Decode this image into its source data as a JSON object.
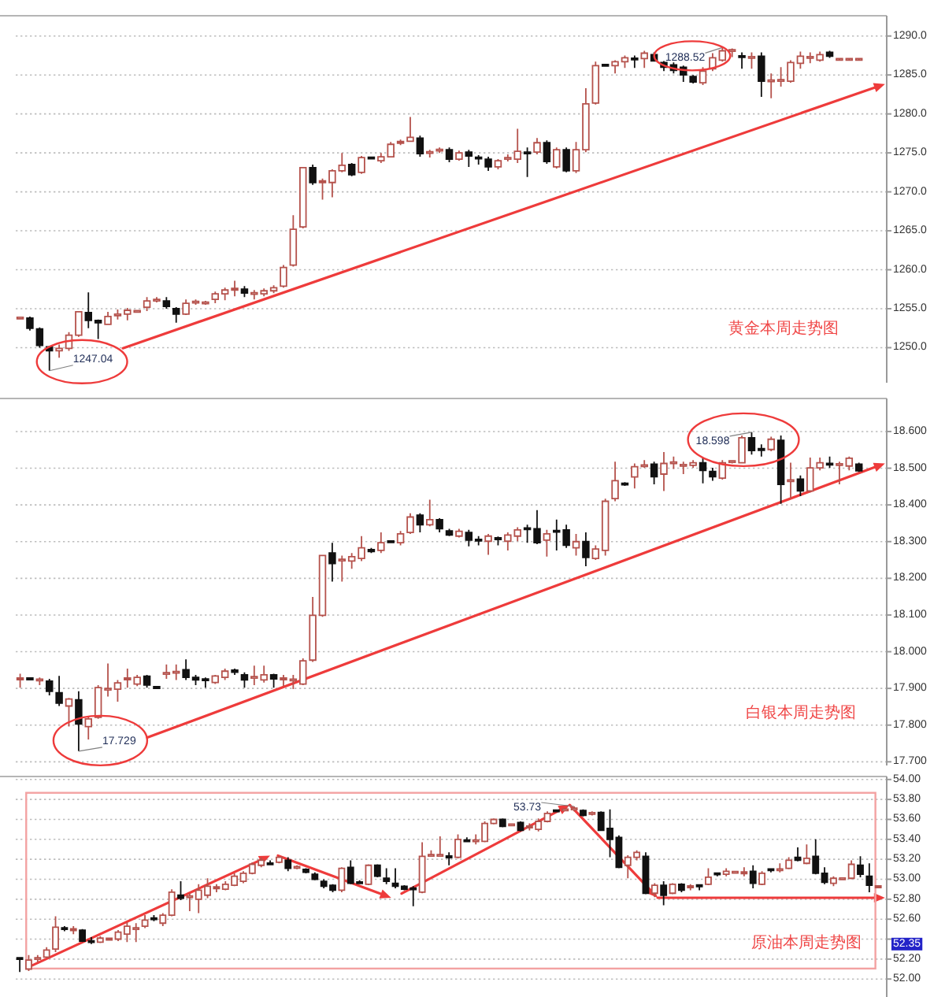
{
  "chart_data": [
    {
      "type": "candlestick",
      "title": "黄金本周走势图",
      "categories": [
        null,
        null,
        null,
        null,
        null,
        null,
        null,
        null,
        null,
        null,
        null,
        null,
        null,
        null,
        null,
        null,
        null,
        null,
        null,
        null,
        null,
        null,
        null,
        null,
        null,
        null,
        null,
        null,
        null,
        null,
        null,
        null,
        null,
        null,
        null,
        null,
        null,
        null,
        null,
        null,
        null,
        null,
        null,
        null,
        null,
        null,
        null,
        null,
        null,
        null,
        null,
        null,
        null,
        null,
        null,
        null,
        null,
        null,
        null,
        null,
        null,
        null,
        null,
        null,
        null,
        null,
        null,
        null,
        null,
        null,
        null,
        null,
        null,
        null,
        null,
        null,
        null,
        null,
        null,
        null,
        null,
        null,
        null,
        null,
        null,
        null,
        null
      ],
      "ohlc": [
        [
          1253.8,
          1254.0,
          1253.6,
          1253.8
        ],
        [
          1253.8,
          1254.0,
          1252.2,
          1252.5
        ],
        [
          1252.4,
          1252.6,
          1250.0,
          1250.3
        ],
        [
          1250.1,
          1250.2,
          1247.04,
          1249.6
        ],
        [
          1249.6,
          1250.4,
          1248.7,
          1249.9
        ],
        [
          1249.9,
          1252.0,
          1249.6,
          1251.6
        ],
        [
          1251.6,
          1254.7,
          1251.4,
          1254.6
        ],
        [
          1254.5,
          1257.1,
          1252.5,
          1253.5
        ],
        [
          1253.5,
          1253.6,
          1251.1,
          1253.2
        ],
        [
          1253.0,
          1254.6,
          1252.9,
          1254.0
        ],
        [
          1254.1,
          1254.9,
          1253.6,
          1254.3
        ],
        [
          1254.3,
          1255.1,
          1253.5,
          1254.8
        ],
        [
          1254.6,
          1254.8,
          1254.5,
          1254.7
        ],
        [
          1255.2,
          1256.5,
          1254.7,
          1256.0
        ],
        [
          1256.0,
          1256.5,
          1255.8,
          1256.2
        ],
        [
          1256.0,
          1256.5,
          1255.0,
          1255.3
        ],
        [
          1255.0,
          1255.2,
          1253.2,
          1254.3
        ],
        [
          1254.3,
          1256.2,
          1254.2,
          1255.7
        ],
        [
          1255.8,
          1256.2,
          1255.5,
          1255.9
        ],
        [
          1255.7,
          1256.0,
          1255.5,
          1255.8
        ],
        [
          1256.2,
          1257.2,
          1255.7,
          1256.9
        ],
        [
          1256.9,
          1257.7,
          1256.1,
          1257.4
        ],
        [
          1257.4,
          1258.6,
          1256.6,
          1257.6
        ],
        [
          1257.5,
          1257.9,
          1256.5,
          1257.0
        ],
        [
          1256.9,
          1257.4,
          1256.2,
          1257.0
        ],
        [
          1256.9,
          1257.6,
          1256.6,
          1257.3
        ],
        [
          1257.3,
          1258.0,
          1257.0,
          1257.7
        ],
        [
          1257.9,
          1260.6,
          1257.7,
          1260.3
        ],
        [
          1260.6,
          1267.0,
          1260.4,
          1265.2
        ],
        [
          1265.5,
          1273.2,
          1265.3,
          1273.1
        ],
        [
          1273.1,
          1273.5,
          1270.9,
          1271.2
        ],
        [
          1271.2,
          1271.7,
          1269.0,
          1271.4
        ],
        [
          1271.2,
          1272.9,
          1269.3,
          1272.7
        ],
        [
          1272.7,
          1275.0,
          1272.5,
          1273.4
        ],
        [
          1273.5,
          1273.7,
          1272.0,
          1272.2
        ],
        [
          1272.5,
          1274.6,
          1272.3,
          1274.4
        ],
        [
          1274.4,
          1274.5,
          1274.2,
          1274.3
        ],
        [
          1274.0,
          1275.0,
          1273.7,
          1274.5
        ],
        [
          1274.5,
          1276.4,
          1274.4,
          1276.1
        ],
        [
          1276.3,
          1276.7,
          1276.0,
          1276.4
        ],
        [
          1276.5,
          1279.6,
          1276.4,
          1277.0
        ],
        [
          1276.9,
          1277.2,
          1274.5,
          1274.9
        ],
        [
          1275.0,
          1275.4,
          1274.4,
          1275.1
        ],
        [
          1275.3,
          1275.7,
          1275.0,
          1275.4
        ],
        [
          1275.4,
          1275.7,
          1273.8,
          1274.2
        ],
        [
          1274.2,
          1275.3,
          1274.0,
          1275.0
        ],
        [
          1275.1,
          1275.4,
          1273.2,
          1274.6
        ],
        [
          1274.4,
          1274.7,
          1273.5,
          1274.3
        ],
        [
          1274.2,
          1274.5,
          1272.7,
          1273.2
        ],
        [
          1273.2,
          1274.2,
          1272.9,
          1274.0
        ],
        [
          1274.2,
          1274.8,
          1273.9,
          1274.4
        ],
        [
          1274.2,
          1278.1,
          1273.7,
          1275.2
        ],
        [
          1275.1,
          1275.7,
          1271.9,
          1274.9
        ],
        [
          1275.1,
          1276.9,
          1274.8,
          1276.3
        ],
        [
          1276.3,
          1276.6,
          1273.6,
          1273.9
        ],
        [
          1273.2,
          1275.7,
          1273.0,
          1275.4
        ],
        [
          1275.4,
          1275.7,
          1272.5,
          1272.7
        ],
        [
          1272.7,
          1276.4,
          1272.4,
          1275.4
        ],
        [
          1275.4,
          1283.3,
          1275.1,
          1281.3
        ],
        [
          1281.4,
          1286.7,
          1281.2,
          1286.2
        ],
        [
          1286.3,
          1286.4,
          1286.1,
          1286.2
        ],
        [
          1286.2,
          1286.9,
          1285.2,
          1286.7
        ],
        [
          1286.7,
          1287.5,
          1285.9,
          1287.2
        ],
        [
          1287.1,
          1287.5,
          1285.9,
          1287.0
        ],
        [
          1287.1,
          1288.1,
          1285.9,
          1287.8
        ],
        [
          1287.6,
          1287.9,
          1286.7,
          1286.8
        ],
        [
          1286.6,
          1286.8,
          1285.5,
          1286.0
        ],
        [
          1286.3,
          1286.6,
          1285.2,
          1285.6
        ],
        [
          1286.0,
          1286.2,
          1284.1,
          1285.0
        ],
        [
          1284.8,
          1285.0,
          1283.9,
          1284.1
        ],
        [
          1284.0,
          1286.0,
          1283.7,
          1285.5
        ],
        [
          1285.8,
          1287.8,
          1285.5,
          1287.2
        ],
        [
          1286.9,
          1288.52,
          1286.7,
          1288.1
        ],
        [
          1288.1,
          1288.4,
          1287.3,
          1288.2
        ],
        [
          1287.4,
          1287.9,
          1285.8,
          1287.3
        ],
        [
          1287.2,
          1287.9,
          1285.8,
          1287.3
        ],
        [
          1287.4,
          1287.9,
          1282.2,
          1284.2
        ],
        [
          1284.2,
          1285.2,
          1282.0,
          1284.3
        ],
        [
          1284.2,
          1286.0,
          1283.5,
          1284.4
        ],
        [
          1284.2,
          1286.9,
          1284.0,
          1286.6
        ],
        [
          1286.5,
          1288.0,
          1285.8,
          1287.4
        ],
        [
          1287.2,
          1287.9,
          1286.5,
          1287.3
        ],
        [
          1286.9,
          1288.0,
          1286.7,
          1287.6
        ],
        [
          1287.9,
          1288.1,
          1287.2,
          1287.4
        ],
        [
          1287.0,
          1287.0,
          1287.0,
          1287.0
        ],
        [
          1287.0,
          1287.0,
          1287.0,
          1287.0
        ],
        [
          1287.0,
          1287.0,
          1287.0,
          1287.0
        ]
      ],
      "ylim": [
        1245.5,
        1292.6
      ],
      "yticks": [
        {
          "value": 1250,
          "label": "1250.0"
        },
        {
          "value": 1255,
          "label": "1255.0"
        },
        {
          "value": 1260,
          "label": "1260.0"
        },
        {
          "value": 1265,
          "label": "1265.0"
        },
        {
          "value": 1270,
          "label": "1270.0"
        },
        {
          "value": 1275,
          "label": "1275.0"
        },
        {
          "value": 1280,
          "label": "1280.0"
        },
        {
          "value": 1285,
          "label": "1285.0"
        },
        {
          "value": 1290,
          "label": "1290.0"
        }
      ],
      "grid": "y",
      "tick_labels": "y",
      "annotations": [
        "1247.04",
        "1288.52"
      ]
    },
    {
      "type": "candlestick",
      "title": "白银本周走势图",
      "categories": [
        null,
        null,
        null,
        null,
        null,
        null,
        null,
        null,
        null,
        null,
        null,
        null,
        null,
        null,
        null,
        null,
        null,
        null,
        null,
        null,
        null,
        null,
        null,
        null,
        null,
        null,
        null,
        null,
        null,
        null,
        null,
        null,
        null,
        null,
        null,
        null,
        null,
        null,
        null,
        null,
        null,
        null,
        null,
        null,
        null,
        null,
        null,
        null,
        null,
        null,
        null,
        null,
        null,
        null,
        null,
        null,
        null,
        null,
        null,
        null,
        null,
        null,
        null,
        null,
        null,
        null,
        null,
        null,
        null,
        null,
        null,
        null,
        null,
        null,
        null,
        null,
        null,
        null,
        null,
        null,
        null,
        null,
        null,
        null,
        null,
        null,
        null
      ],
      "ohlc": [
        [
          17.925,
          17.94,
          17.902,
          17.927
        ],
        [
          17.927,
          17.929,
          17.923,
          17.925
        ],
        [
          17.922,
          17.93,
          17.909,
          17.924
        ],
        [
          17.92,
          17.926,
          17.881,
          17.892
        ],
        [
          17.888,
          17.934,
          17.852,
          17.86
        ],
        [
          17.852,
          17.874,
          17.796,
          17.871
        ],
        [
          17.869,
          17.892,
          17.729,
          17.803
        ],
        [
          17.796,
          17.824,
          17.761,
          17.817
        ],
        [
          17.821,
          17.909,
          17.817,
          17.902
        ],
        [
          17.897,
          17.968,
          17.878,
          17.899
        ],
        [
          17.898,
          17.923,
          17.864,
          17.915
        ],
        [
          17.925,
          17.954,
          17.902,
          17.927
        ],
        [
          17.912,
          17.937,
          17.906,
          17.93
        ],
        [
          17.933,
          17.937,
          17.902,
          17.909
        ],
        [
          17.903,
          17.904,
          17.9,
          17.902
        ],
        [
          17.94,
          17.965,
          17.926,
          17.942
        ],
        [
          17.943,
          17.965,
          17.923,
          17.945
        ],
        [
          17.951,
          17.979,
          17.923,
          17.93
        ],
        [
          17.93,
          17.937,
          17.909,
          17.923
        ],
        [
          17.924,
          17.93,
          17.902,
          17.923
        ],
        [
          17.916,
          17.937,
          17.912,
          17.934
        ],
        [
          17.93,
          17.954,
          17.923,
          17.947
        ],
        [
          17.95,
          17.954,
          17.937,
          17.944
        ],
        [
          17.937,
          17.944,
          17.902,
          17.923
        ],
        [
          17.929,
          17.962,
          17.909,
          17.931
        ],
        [
          17.923,
          17.962,
          17.916,
          17.937
        ],
        [
          17.937,
          17.94,
          17.902,
          17.926
        ],
        [
          17.925,
          17.937,
          17.906,
          17.927
        ],
        [
          17.922,
          17.937,
          17.898,
          17.924
        ],
        [
          17.912,
          17.982,
          17.909,
          17.975
        ],
        [
          17.977,
          18.149,
          17.972,
          18.099
        ],
        [
          18.099,
          18.264,
          18.095,
          18.262
        ],
        [
          18.269,
          18.297,
          18.191,
          18.24
        ],
        [
          18.249,
          18.262,
          18.191,
          18.251
        ],
        [
          18.247,
          18.269,
          18.226,
          18.259
        ],
        [
          18.254,
          18.315,
          18.247,
          18.283
        ],
        [
          18.278,
          18.283,
          18.269,
          18.273
        ],
        [
          18.276,
          18.325,
          18.269,
          18.297
        ],
        [
          18.3,
          18.304,
          18.296,
          18.299
        ],
        [
          18.297,
          18.329,
          18.29,
          18.321
        ],
        [
          18.325,
          18.377,
          18.321,
          18.367
        ],
        [
          18.372,
          18.377,
          18.325,
          18.346
        ],
        [
          18.346,
          18.414,
          18.342,
          18.36
        ],
        [
          18.36,
          18.364,
          18.325,
          18.335
        ],
        [
          18.329,
          18.335,
          18.315,
          18.318
        ],
        [
          18.315,
          18.335,
          18.311,
          18.328
        ],
        [
          18.325,
          18.332,
          18.287,
          18.304
        ],
        [
          18.305,
          18.315,
          18.29,
          18.303
        ],
        [
          18.301,
          18.321,
          18.264,
          18.315
        ],
        [
          18.309,
          18.314,
          18.29,
          18.307
        ],
        [
          18.301,
          18.325,
          18.276,
          18.318
        ],
        [
          18.315,
          18.339,
          18.301,
          18.332
        ],
        [
          18.336,
          18.346,
          18.297,
          18.334
        ],
        [
          18.335,
          18.386,
          18.293,
          18.297
        ],
        [
          18.304,
          18.332,
          18.259,
          18.321
        ],
        [
          18.329,
          18.36,
          18.276,
          18.327
        ],
        [
          18.332,
          18.346,
          18.283,
          18.29
        ],
        [
          18.283,
          18.321,
          18.262,
          18.3
        ],
        [
          18.3,
          18.325,
          18.233,
          18.257
        ],
        [
          18.254,
          18.29,
          18.25,
          18.28
        ],
        [
          18.276,
          18.417,
          18.262,
          18.41
        ],
        [
          18.417,
          18.518,
          18.41,
          18.466
        ],
        [
          18.458,
          18.462,
          18.452,
          18.456
        ],
        [
          18.476,
          18.513,
          18.445,
          18.504
        ],
        [
          18.506,
          18.522,
          18.501,
          18.508
        ],
        [
          18.511,
          18.518,
          18.456,
          18.477
        ],
        [
          18.484,
          18.544,
          18.438,
          18.513
        ],
        [
          18.514,
          18.532,
          18.498,
          18.516
        ],
        [
          18.507,
          18.518,
          18.484,
          18.509
        ],
        [
          18.508,
          18.522,
          18.501,
          18.515
        ],
        [
          18.515,
          18.529,
          18.459,
          18.494
        ],
        [
          18.491,
          18.501,
          18.466,
          18.477
        ],
        [
          18.473,
          18.522,
          18.469,
          18.515
        ],
        [
          18.517,
          18.522,
          18.513,
          18.519
        ],
        [
          18.515,
          18.589,
          18.513,
          18.583
        ],
        [
          18.583,
          18.598,
          18.537,
          18.548
        ],
        [
          18.552,
          18.565,
          18.532,
          18.55
        ],
        [
          18.551,
          18.586,
          18.546,
          18.579
        ],
        [
          18.576,
          18.589,
          18.403,
          18.456
        ],
        [
          18.465,
          18.515,
          18.417,
          18.467
        ],
        [
          18.47,
          18.48,
          18.424,
          18.438
        ],
        [
          18.438,
          18.529,
          18.434,
          18.501
        ],
        [
          18.501,
          18.529,
          18.494,
          18.515
        ],
        [
          18.512,
          18.532,
          18.501,
          18.51
        ],
        [
          18.509,
          18.518,
          18.456,
          18.511
        ],
        [
          18.506,
          18.532,
          18.494,
          18.527
        ],
        [
          18.511,
          18.515,
          18.49,
          18.493
        ]
      ],
      "ylim": [
        17.69,
        18.69
      ],
      "yticks": [
        {
          "value": 17.7,
          "label": "17.700"
        },
        {
          "value": 17.8,
          "label": "17.800"
        },
        {
          "value": 17.9,
          "label": "17.900"
        },
        {
          "value": 18.0,
          "label": "18.000"
        },
        {
          "value": 18.1,
          "label": "18.100"
        },
        {
          "value": 18.2,
          "label": "18.200"
        },
        {
          "value": 18.3,
          "label": "18.300"
        },
        {
          "value": 18.4,
          "label": "18.400"
        },
        {
          "value": 18.5,
          "label": "18.500"
        },
        {
          "value": 18.6,
          "label": "18.600"
        }
      ],
      "grid": "y",
      "tick_labels": "y",
      "annotations": [
        "17.729",
        "18.598"
      ]
    },
    {
      "type": "candlestick",
      "title": "原油本周走势图",
      "categories": [
        null,
        null,
        null,
        null,
        null,
        null,
        null,
        null,
        null,
        null,
        null,
        null,
        null,
        null,
        null,
        null,
        null,
        null,
        null,
        null,
        null,
        null,
        null,
        null,
        null,
        null,
        null,
        null,
        null,
        null,
        null,
        null,
        null,
        null,
        null,
        null,
        null,
        null,
        null,
        null,
        null,
        null,
        null,
        null,
        null,
        null,
        null,
        null,
        null,
        null,
        null,
        null,
        null,
        null,
        null,
        null,
        null,
        null,
        null,
        null,
        null,
        null,
        null,
        null,
        null,
        null,
        null,
        null,
        null,
        null,
        null,
        null,
        null,
        null,
        null,
        null,
        null,
        null,
        null,
        null,
        null,
        null,
        null,
        null,
        null,
        null,
        null,
        null,
        null,
        null,
        null,
        null,
        null,
        null,
        null,
        null,
        null
      ],
      "ohlc": [
        [
          52.21,
          52.22,
          52.07,
          52.2
        ],
        [
          52.1,
          52.24,
          52.08,
          52.19
        ],
        [
          52.2,
          52.24,
          52.17,
          52.21
        ],
        [
          52.22,
          52.32,
          52.21,
          52.29
        ],
        [
          52.3,
          52.63,
          52.27,
          52.52
        ],
        [
          52.51,
          52.53,
          52.48,
          52.5
        ],
        [
          52.49,
          52.53,
          52.45,
          52.5
        ],
        [
          52.49,
          52.5,
          52.37,
          52.38
        ],
        [
          52.38,
          52.42,
          52.35,
          52.37
        ],
        [
          52.37,
          52.43,
          52.36,
          52.41
        ],
        [
          52.4,
          52.41,
          52.39,
          52.4
        ],
        [
          52.4,
          52.49,
          52.38,
          52.47
        ],
        [
          52.45,
          52.57,
          52.37,
          52.53
        ],
        [
          52.5,
          52.56,
          52.37,
          52.51
        ],
        [
          52.53,
          52.64,
          52.51,
          52.59
        ],
        [
          52.61,
          52.64,
          52.58,
          52.6
        ],
        [
          52.56,
          52.66,
          52.53,
          52.64
        ],
        [
          52.64,
          52.9,
          52.63,
          52.87
        ],
        [
          52.84,
          52.98,
          52.79,
          52.81
        ],
        [
          52.82,
          52.86,
          52.68,
          52.83
        ],
        [
          52.8,
          52.95,
          52.66,
          52.89
        ],
        [
          52.84,
          53.01,
          52.81,
          52.93
        ],
        [
          52.91,
          52.95,
          52.87,
          52.92
        ],
        [
          52.9,
          52.98,
          52.89,
          52.95
        ],
        [
          52.94,
          53.06,
          52.93,
          53.03
        ],
        [
          52.98,
          53.08,
          52.96,
          53.06
        ],
        [
          53.06,
          53.17,
          53.05,
          53.15
        ],
        [
          53.14,
          53.22,
          53.12,
          53.19
        ],
        [
          53.16,
          53.19,
          53.14,
          53.15
        ],
        [
          53.17,
          53.23,
          53.16,
          53.22
        ],
        [
          53.19,
          53.22,
          53.08,
          53.11
        ],
        [
          53.12,
          53.14,
          53.1,
          53.12
        ],
        [
          53.1,
          53.11,
          53.06,
          53.07
        ],
        [
          53.05,
          53.07,
          52.99,
          53.0
        ],
        [
          52.98,
          53.0,
          52.91,
          52.93
        ],
        [
          52.94,
          52.95,
          52.87,
          52.89
        ],
        [
          52.89,
          53.12,
          52.87,
          53.11
        ],
        [
          53.12,
          53.19,
          52.95,
          52.96
        ],
        [
          52.97,
          52.99,
          52.95,
          52.96
        ],
        [
          52.95,
          53.15,
          52.94,
          53.14
        ],
        [
          53.14,
          53.15,
          53.02,
          53.03
        ],
        [
          53.01,
          53.11,
          52.95,
          52.98
        ],
        [
          52.96,
          53.11,
          52.91,
          52.93
        ],
        [
          52.93,
          52.94,
          52.89,
          52.9
        ],
        [
          52.91,
          52.93,
          52.73,
          52.9
        ],
        [
          52.87,
          53.37,
          52.86,
          53.23
        ],
        [
          53.24,
          53.29,
          53.23,
          53.24
        ],
        [
          53.24,
          53.43,
          53.23,
          53.24
        ],
        [
          53.23,
          53.27,
          53.14,
          53.22
        ],
        [
          53.22,
          53.45,
          53.21,
          53.4
        ],
        [
          53.39,
          53.42,
          53.37,
          53.38
        ],
        [
          53.38,
          53.45,
          53.35,
          53.39
        ],
        [
          53.38,
          53.58,
          53.37,
          53.56
        ],
        [
          53.56,
          53.61,
          53.55,
          53.6
        ],
        [
          53.6,
          53.61,
          53.52,
          53.53
        ],
        [
          53.54,
          53.56,
          53.53,
          53.55
        ],
        [
          53.57,
          53.58,
          53.48,
          53.49
        ],
        [
          53.52,
          53.56,
          53.49,
          53.53
        ],
        [
          53.5,
          53.61,
          53.48,
          53.58
        ],
        [
          53.58,
          53.68,
          53.57,
          53.66
        ],
        [
          53.69,
          53.7,
          53.67,
          53.68
        ],
        [
          53.69,
          53.71,
          53.68,
          53.7
        ],
        [
          53.7,
          53.73,
          53.68,
          53.71
        ],
        [
          53.69,
          53.7,
          53.63,
          53.64
        ],
        [
          53.66,
          53.68,
          53.64,
          53.66
        ],
        [
          53.67,
          53.68,
          53.49,
          53.49
        ],
        [
          53.51,
          53.7,
          53.22,
          53.4
        ],
        [
          53.42,
          53.44,
          53.11,
          53.12
        ],
        [
          53.14,
          53.24,
          53.01,
          53.22
        ],
        [
          53.22,
          53.29,
          53.19,
          53.27
        ],
        [
          53.23,
          53.27,
          52.85,
          52.86
        ],
        [
          52.86,
          52.96,
          52.82,
          52.94
        ],
        [
          52.94,
          52.98,
          52.74,
          52.84
        ],
        [
          52.86,
          52.96,
          52.85,
          52.95
        ],
        [
          52.95,
          52.96,
          52.87,
          52.89
        ],
        [
          52.92,
          52.95,
          52.89,
          52.93
        ],
        [
          52.94,
          52.95,
          52.89,
          52.93
        ],
        [
          52.95,
          53.11,
          52.94,
          53.02
        ],
        [
          53.06,
          53.07,
          53.03,
          53.05
        ],
        [
          53.05,
          53.11,
          53.03,
          53.08
        ],
        [
          53.07,
          53.08,
          53.06,
          53.07
        ],
        [
          53.06,
          53.12,
          53.03,
          53.07
        ],
        [
          53.08,
          53.14,
          52.91,
          52.96
        ],
        [
          52.95,
          53.08,
          52.94,
          53.06
        ],
        [
          53.1,
          53.11,
          53.07,
          53.09
        ],
        [
          53.09,
          53.16,
          53.07,
          53.1
        ],
        [
          53.11,
          53.22,
          53.1,
          53.19
        ],
        [
          53.22,
          53.32,
          53.18,
          53.19
        ],
        [
          53.16,
          53.35,
          53.15,
          53.21
        ],
        [
          53.23,
          53.4,
          53.05,
          53.06
        ],
        [
          53.06,
          53.12,
          52.95,
          52.97
        ],
        [
          52.96,
          53.03,
          52.93,
          53.01
        ],
        [
          53.0,
          53.02,
          52.99,
          53.01
        ],
        [
          53.01,
          53.19,
          53.0,
          53.15
        ],
        [
          53.14,
          53.23,
          53.02,
          53.05
        ],
        [
          53.03,
          53.16,
          52.87,
          52.94
        ],
        [
          52.92,
          52.93,
          52.92,
          52.93
        ]
      ],
      "ylim": [
        51.82,
        54.03
      ],
      "yticks": [
        {
          "value": 52.0,
          "label": "52.00"
        },
        {
          "value": 52.2,
          "label": "52.20"
        },
        {
          "value": 52.4,
          "label": null
        },
        {
          "value": 52.6,
          "label": "52.60"
        },
        {
          "value": 52.8,
          "label": "52.80"
        },
        {
          "value": 53.0,
          "label": "53.00"
        },
        {
          "value": 53.2,
          "label": "53.20"
        },
        {
          "value": 53.4,
          "label": "53.40"
        },
        {
          "value": 53.6,
          "label": "53.60"
        },
        {
          "value": 53.8,
          "label": "53.80"
        },
        {
          "value": 54.0,
          "label": "54.00"
        }
      ],
      "grid": "y",
      "tick_labels": "y",
      "annotations": [
        "53.73",
        "52.35"
      ]
    }
  ]
}
